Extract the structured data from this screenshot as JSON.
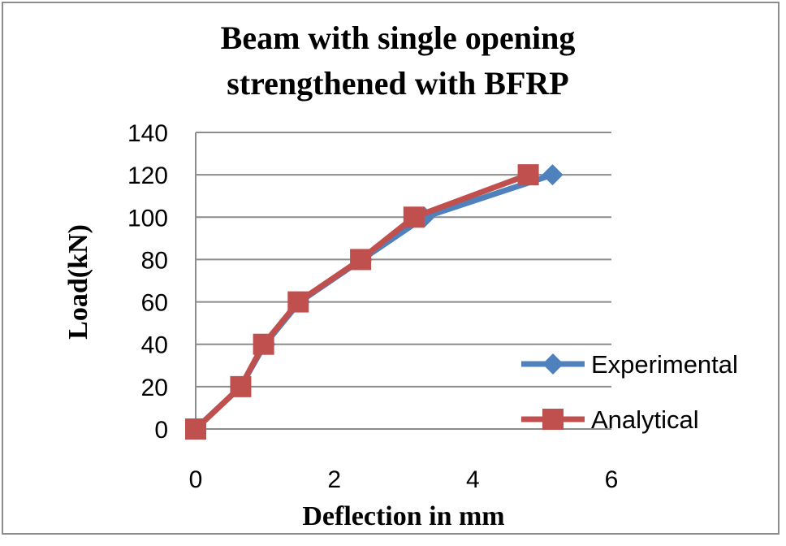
{
  "chart_data": {
    "type": "line",
    "title_line1": "Beam with single opening",
    "title_line2": "strengthened with BFRP",
    "xlabel": "Deflection in mm",
    "ylabel": "Load(kN)",
    "xlim": [
      0,
      6
    ],
    "ylim": [
      0,
      140
    ],
    "x_ticks": [
      0,
      2,
      4,
      6
    ],
    "y_ticks": [
      0,
      20,
      40,
      60,
      80,
      100,
      120,
      140
    ],
    "grid": "horizontal",
    "legend_position": "right",
    "series": [
      {
        "name": "Experimental",
        "color": "#4f81bd",
        "marker": "diamond",
        "points": [
          [
            0,
            0
          ],
          [
            0.65,
            20
          ],
          [
            1.0,
            40
          ],
          [
            1.5,
            60
          ],
          [
            2.4,
            80
          ],
          [
            3.3,
            100
          ],
          [
            5.15,
            120
          ]
        ]
      },
      {
        "name": "Analytical",
        "color": "#c0504d",
        "marker": "square",
        "points": [
          [
            0,
            0
          ],
          [
            0.65,
            20
          ],
          [
            0.98,
            40
          ],
          [
            1.48,
            60
          ],
          [
            2.38,
            80
          ],
          [
            3.15,
            100
          ],
          [
            4.8,
            120
          ]
        ]
      }
    ]
  }
}
